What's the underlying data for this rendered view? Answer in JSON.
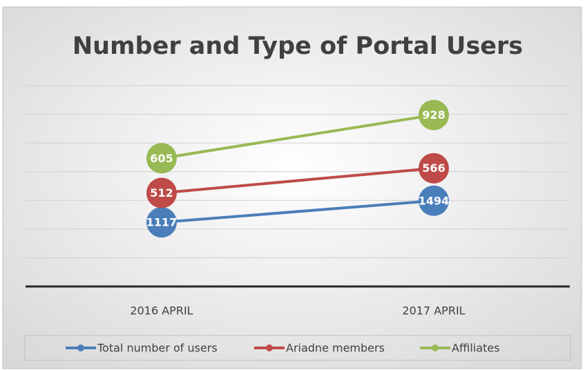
{
  "chart_data": {
    "type": "line",
    "stacked": true,
    "title": "Number and Type of Portal Users",
    "categories": [
      "2016 APRIL",
      "2017 APRIL"
    ],
    "series": [
      {
        "name": "Total number of users",
        "color": "#4a7ebb",
        "values": [
          1117,
          1494
        ]
      },
      {
        "name": "Ariadne members",
        "color": "#be4b48",
        "values": [
          512,
          566
        ]
      },
      {
        "name": "Affiliates",
        "color": "#98b954",
        "values": [
          605,
          928
        ]
      }
    ],
    "ylim": [
      0,
      3500
    ],
    "yticks": [
      0,
      500,
      1000,
      1500,
      2000,
      2500,
      3000,
      3500
    ],
    "grid": true,
    "legend": "bottom",
    "data_labels": true
  }
}
